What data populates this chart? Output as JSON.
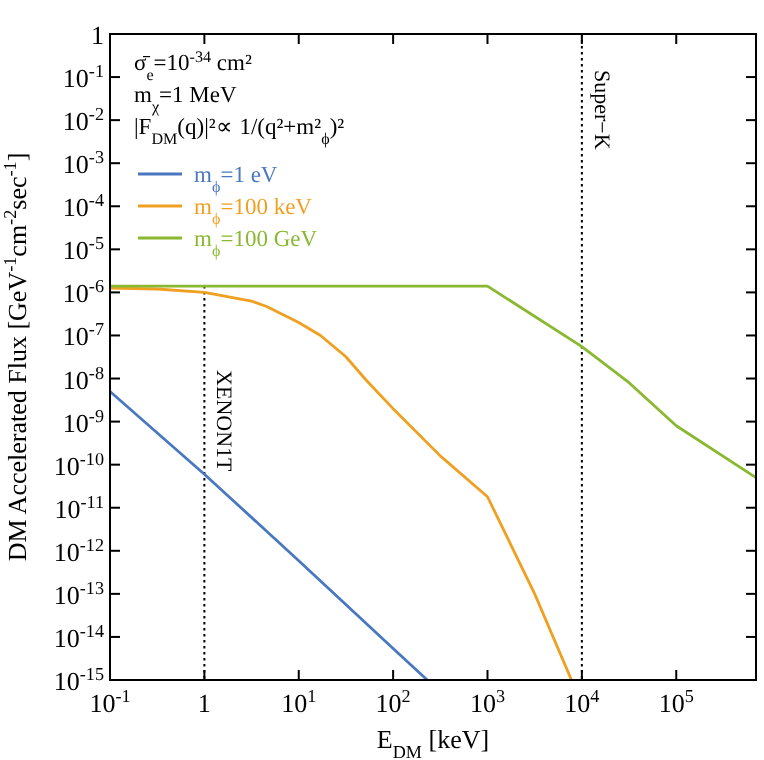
{
  "chart_data": {
    "type": "line",
    "xlabel": "E$_{DM}$ [keV]",
    "ylabel": "DM Accelerated Flux [GeV$^{-1}$cm$^{-2}$sec$^{-1}$]",
    "log": "xy",
    "xlim": [
      0.1,
      700000
    ],
    "ylim": [
      1e-15,
      1
    ],
    "xticks": [
      {
        "value": 0.1,
        "label": "10$^{-1}$"
      },
      {
        "value": 1,
        "label": "1"
      },
      {
        "value": 10,
        "label": "10$^{1}$"
      },
      {
        "value": 100,
        "label": "10$^{2}$"
      },
      {
        "value": 1000,
        "label": "10$^{3}$"
      },
      {
        "value": 10000,
        "label": "10$^{4}$"
      },
      {
        "value": 100000,
        "label": "10$^{5}$"
      }
    ],
    "yticks": [
      {
        "value": 1e-15,
        "label": "10$^{-15}$"
      },
      {
        "value": 1e-14,
        "label": "10$^{-14}$"
      },
      {
        "value": 1e-13,
        "label": "10$^{-13}$"
      },
      {
        "value": 1e-12,
        "label": "10$^{-12}$"
      },
      {
        "value": 1e-11,
        "label": "10$^{-11}$"
      },
      {
        "value": 1e-10,
        "label": "10$^{-10}$"
      },
      {
        "value": 1e-09,
        "label": "10$^{-9}$"
      },
      {
        "value": 1e-08,
        "label": "10$^{-8}$"
      },
      {
        "value": 1e-07,
        "label": "10$^{-7}$"
      },
      {
        "value": 1e-06,
        "label": "10$^{-6}$"
      },
      {
        "value": 1e-05,
        "label": "10$^{-5}$"
      },
      {
        "value": 0.0001,
        "label": "10$^{-4}$"
      },
      {
        "value": 0.001,
        "label": "10$^{-3}$"
      },
      {
        "value": 0.01,
        "label": "10$^{-2}$"
      },
      {
        "value": 0.1,
        "label": "10$^{-1}$"
      },
      {
        "value": 1,
        "label": "1"
      }
    ],
    "grid": false,
    "legend": "top left",
    "line_style": "solid",
    "annotations": [
      "σ̄$_{e}$=10$^{-34}$ cm²",
      "m$_{χ}$=1 MeV",
      "|F$_{DM}$(q)|²∝ 1/(q²+m²$_{ϕ}$)²"
    ],
    "ref_lines": [
      {
        "axis": "x",
        "value": 1,
        "label": "XENON1T",
        "color": "#000000",
        "line_style": "dotted"
      },
      {
        "axis": "x",
        "value": 10000,
        "label": "Super−K",
        "color": "#000000",
        "line_style": "dotted"
      }
    ],
    "series": [
      {
        "name": "m$_{ϕ}$=1 eV",
        "color": "#4a78c0",
        "x": [
          0.1,
          1,
          10,
          100,
          230
        ],
        "values": [
          5e-09,
          6e-11,
          5.9e-13,
          5.4e-15,
          1e-15
        ]
      },
      {
        "name": "m$_{ϕ}$=100 keV",
        "color": "#f0a020",
        "x": [
          0.1,
          0.316,
          1,
          3.16,
          4.57,
          10,
          17,
          31.6,
          52.5,
          100,
          316,
          1000,
          3162,
          7762
        ],
        "values": [
          1.26e-06,
          1.2e-06,
          1e-06,
          6.3e-07,
          4.7e-07,
          2e-07,
          1e-07,
          3.2e-08,
          8.9e-09,
          2e-09,
          1.6e-10,
          1.8e-11,
          1e-13,
          1e-15
        ]
      },
      {
        "name": "m$_{ϕ}$=100 GeV",
        "color": "#8ab830",
        "x": [
          0.1,
          1000,
          10000,
          31620,
          100000,
          700000
        ],
        "values": [
          1.4e-06,
          1.4e-06,
          5.5e-08,
          8e-09,
          8e-10,
          5e-11
        ]
      }
    ]
  }
}
